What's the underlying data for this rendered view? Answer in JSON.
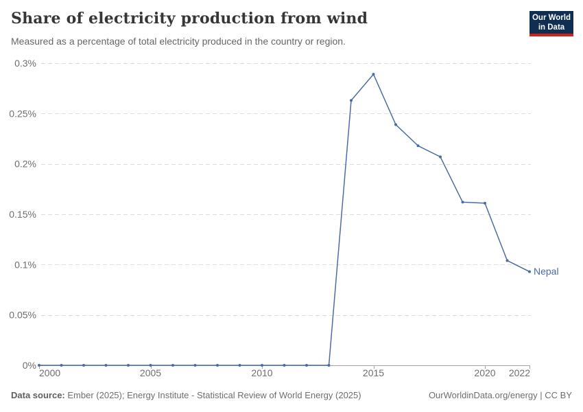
{
  "header": {
    "title": "Share of electricity production from wind",
    "subtitle": "Measured as a percentage of total electricity produced in the country or region.",
    "logo": {
      "line1": "Our World",
      "line2": "in Data"
    }
  },
  "footer": {
    "datasource_label": "Data source:",
    "datasource_text": "Ember (2025); Energy Institute - Statistical Review of World Energy (2025)",
    "license_text": "OurWorldinData.org/energy | CC BY"
  },
  "colors": {
    "background": "#FFFFFF",
    "title": "#363636",
    "subtitle": "#666666",
    "line": "#4C6BA5",
    "end_label": "#4C6BA5",
    "grid": "#DCDCDC",
    "axis": "#A5A5A5",
    "tick_label": "#6E6E6E",
    "footer_text": "#6E6E6E",
    "logo_bg": "#0E2E52",
    "logo_accent": "#CF2318"
  },
  "chart_data": {
    "type": "line",
    "title": "Share of electricity production from wind",
    "subtitle": "Measured as a percentage of total electricity produced in the country or region.",
    "xlabel": "",
    "ylabel": "",
    "xlim": [
      2000,
      2022
    ],
    "ylim": [
      0,
      0.3
    ],
    "grid": "horizontal-dashed",
    "legend_position": "end-of-line",
    "x_ticks": [
      2000,
      2005,
      2010,
      2015,
      2020,
      2022
    ],
    "y_ticks": [
      0,
      0.05,
      0.1,
      0.15,
      0.2,
      0.25,
      0.3
    ],
    "y_tick_labels": [
      "0%",
      "0.05%",
      "0.1%",
      "0.15%",
      "0.2%",
      "0.25%",
      "0.3%"
    ],
    "series": [
      {
        "name": "Nepal",
        "color": "#4C6BA5",
        "x": [
          2000,
          2001,
          2002,
          2003,
          2004,
          2005,
          2006,
          2007,
          2008,
          2009,
          2010,
          2011,
          2012,
          2013,
          2014,
          2015,
          2016,
          2017,
          2018,
          2019,
          2020,
          2021,
          2022
        ],
        "values": [
          0,
          0,
          0,
          0,
          0,
          0,
          0,
          0,
          0,
          0,
          0,
          0,
          0,
          0,
          0.263,
          0.289,
          0.239,
          0.218,
          0.207,
          0.162,
          0.161,
          0.104,
          0.093
        ]
      }
    ]
  }
}
